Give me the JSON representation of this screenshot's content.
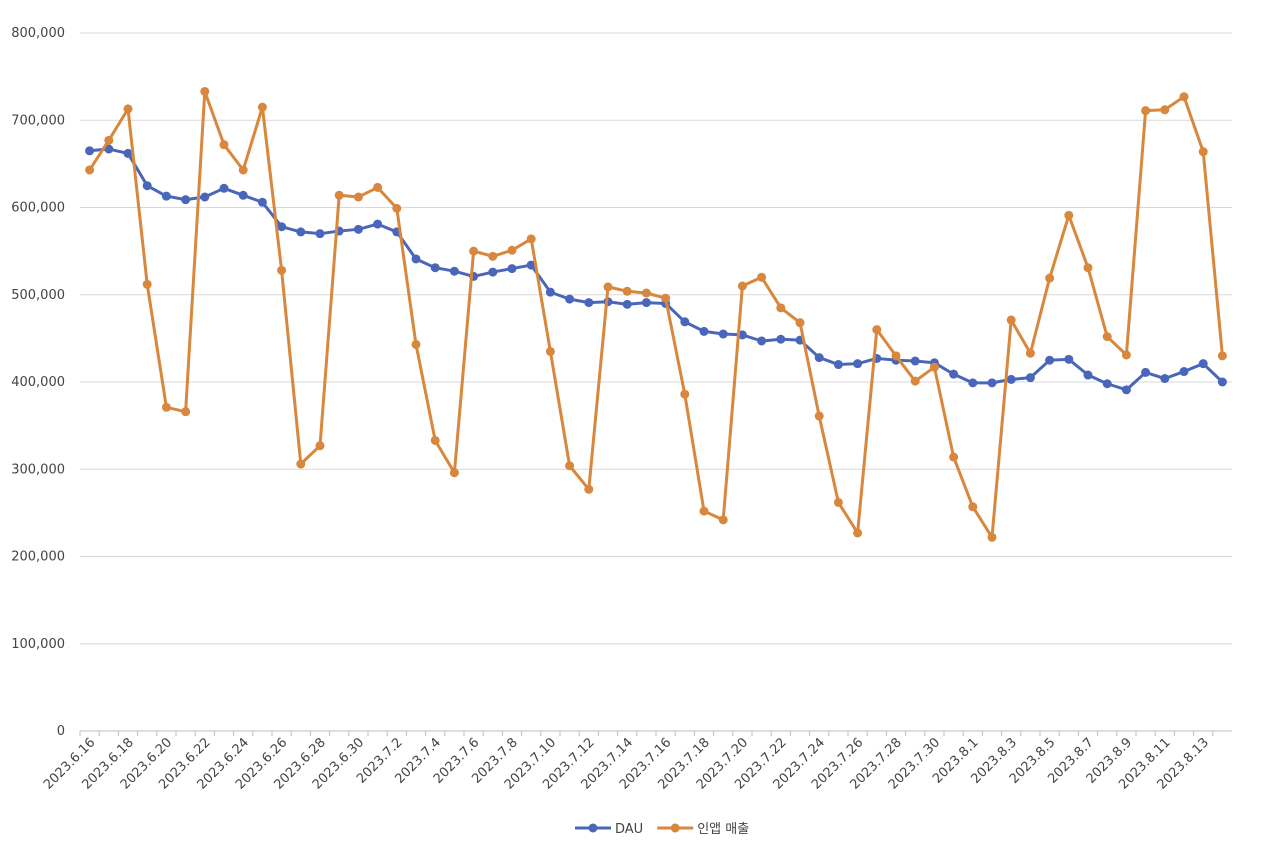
{
  "chart_data": {
    "type": "line",
    "categories": [
      "2023.6.16",
      null,
      "2023.6.18",
      null,
      "2023.6.20",
      null,
      "2023.6.22",
      null,
      "2023.6.24",
      null,
      "2023.6.26",
      null,
      "2023.6.28",
      null,
      "2023.6.30",
      null,
      "2023.7.2",
      null,
      "2023.7.4",
      null,
      "2023.7.6",
      null,
      "2023.7.8",
      null,
      "2023.7.10",
      null,
      "2023.7.12",
      null,
      "2023.7.14",
      null,
      "2023.7.16",
      null,
      "2023.7.18",
      null,
      "2023.7.20",
      null,
      "2023.7.22",
      null,
      "2023.7.24",
      null,
      "2023.7.26",
      null,
      "2023.7.28",
      null,
      "2023.7.30",
      null,
      "2023.8.1",
      null,
      "2023.8.3",
      null,
      "2023.8.5",
      null,
      "2023.8.7",
      null,
      "2023.8.9",
      null,
      "2023.8.11",
      null,
      "2023.8.13",
      null
    ],
    "series": [
      {
        "name": "DAU",
        "color": "#4a66ba",
        "values": [
          665000,
          667000,
          662000,
          625000,
          613000,
          609000,
          612000,
          622000,
          614000,
          606000,
          578000,
          572000,
          570000,
          573000,
          575000,
          581000,
          572000,
          541000,
          531000,
          527000,
          521000,
          526000,
          530000,
          534000,
          503000,
          495000,
          491000,
          492000,
          489000,
          491000,
          490000,
          469000,
          458000,
          455000,
          454000,
          447000,
          449000,
          448000,
          428000,
          420000,
          421000,
          427000,
          425000,
          424000,
          422000,
          409000,
          399000,
          399000,
          403000,
          405000,
          425000,
          426000,
          408000,
          398000,
          391000,
          411000,
          404000,
          412000,
          421000,
          400000
        ]
      },
      {
        "name": "인앱 매출",
        "color": "#d8873d",
        "values": [
          643000,
          677000,
          713000,
          512000,
          371000,
          366000,
          733000,
          672000,
          643000,
          715000,
          528000,
          306000,
          327000,
          614000,
          612000,
          623000,
          599000,
          443000,
          333000,
          296000,
          550000,
          544000,
          551000,
          564000,
          435000,
          304000,
          277000,
          509000,
          504000,
          502000,
          496000,
          386000,
          252000,
          242000,
          510000,
          520000,
          485000,
          468000,
          361000,
          262000,
          227000,
          460000,
          430000,
          401000,
          417000,
          314000,
          257000,
          222000,
          471000,
          433000,
          519000,
          591000,
          531000,
          452000,
          431000,
          711000,
          712000,
          727000,
          664000,
          430000
        ]
      }
    ],
    "ylim": [
      0,
      800000
    ],
    "yticks": [
      0,
      {
        "value": 100000,
        "label": "100,000"
      },
      {
        "value": 200000,
        "label": "200,000"
      },
      {
        "value": 300000,
        "label": "300,000"
      },
      {
        "value": 400000,
        "label": "400,000"
      },
      {
        "value": 500000,
        "label": "500,000"
      },
      {
        "value": 600000,
        "label": "600,000"
      },
      {
        "value": 700000,
        "label": "700,000"
      },
      {
        "value": 800000,
        "label": "800,000"
      }
    ],
    "grid": true,
    "legend": "bottom"
  }
}
